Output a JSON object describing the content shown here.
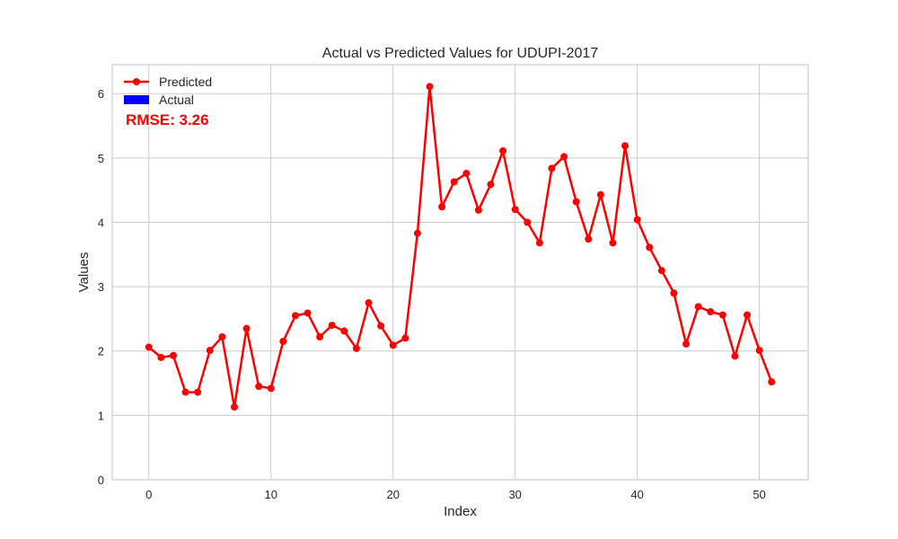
{
  "chart_data": {
    "type": "line",
    "title": "Actual vs Predicted Values for UDUPI-2017",
    "xlabel": "Index",
    "ylabel": "Values",
    "xlim": [
      -3,
      54
    ],
    "ylim": [
      0,
      6.45
    ],
    "xticks": [
      0,
      10,
      20,
      30,
      40,
      50
    ],
    "yticks": [
      0,
      1,
      2,
      3,
      4,
      5,
      6
    ],
    "grid": true,
    "legend": {
      "placement": "top-left",
      "entries": [
        "Predicted",
        "Actual"
      ]
    },
    "annotation": "RMSE: 3.26",
    "series": [
      {
        "name": "Predicted",
        "color": "#ff0000",
        "marker": "circle",
        "x": [
          0,
          1,
          2,
          3,
          4,
          5,
          6,
          7,
          8,
          9,
          10,
          11,
          12,
          13,
          14,
          15,
          16,
          17,
          18,
          19,
          20,
          21,
          22,
          23,
          24,
          25,
          26,
          27,
          28,
          29,
          30,
          31,
          32,
          33,
          34,
          35,
          36,
          37,
          38,
          39,
          40,
          41,
          42,
          43,
          44,
          45,
          46,
          47,
          48,
          49,
          50,
          51
        ],
        "y": [
          2.06,
          1.9,
          1.93,
          1.36,
          1.36,
          2.01,
          2.22,
          1.13,
          2.35,
          1.45,
          1.42,
          2.15,
          2.55,
          2.59,
          2.22,
          2.4,
          2.31,
          2.04,
          2.75,
          2.39,
          2.09,
          2.2,
          3.83,
          6.11,
          4.24,
          4.63,
          4.76,
          4.19,
          4.59,
          5.11,
          4.2,
          4.0,
          3.68,
          4.84,
          5.02,
          4.32,
          3.74,
          4.43,
          3.68,
          5.19,
          4.04,
          3.61,
          3.25,
          2.9,
          2.11,
          2.69,
          2.61,
          2.56,
          1.92,
          2.56,
          2.01,
          1.52
        ]
      },
      {
        "name": "Actual",
        "color": "#0000ff",
        "x": [],
        "y": []
      }
    ]
  }
}
